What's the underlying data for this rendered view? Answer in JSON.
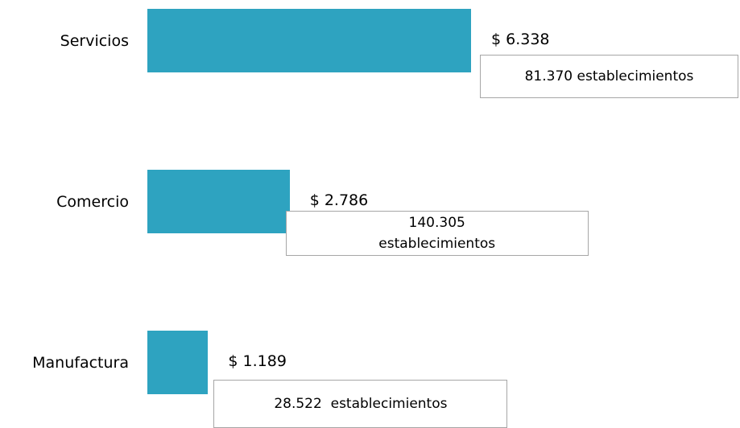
{
  "chart_data": {
    "type": "barh",
    "categories": [
      "Servicios",
      "Comercio",
      "Manufactura"
    ],
    "values": [
      6338,
      2786,
      1189
    ],
    "value_labels": [
      "$ 6.338",
      "$ 2.786",
      "$ 1.189"
    ],
    "annotations": [
      "81.370 establecimientos",
      "140.305 establecimientos",
      "28.522  establecimientos"
    ],
    "color": "#2ea3c0"
  }
}
